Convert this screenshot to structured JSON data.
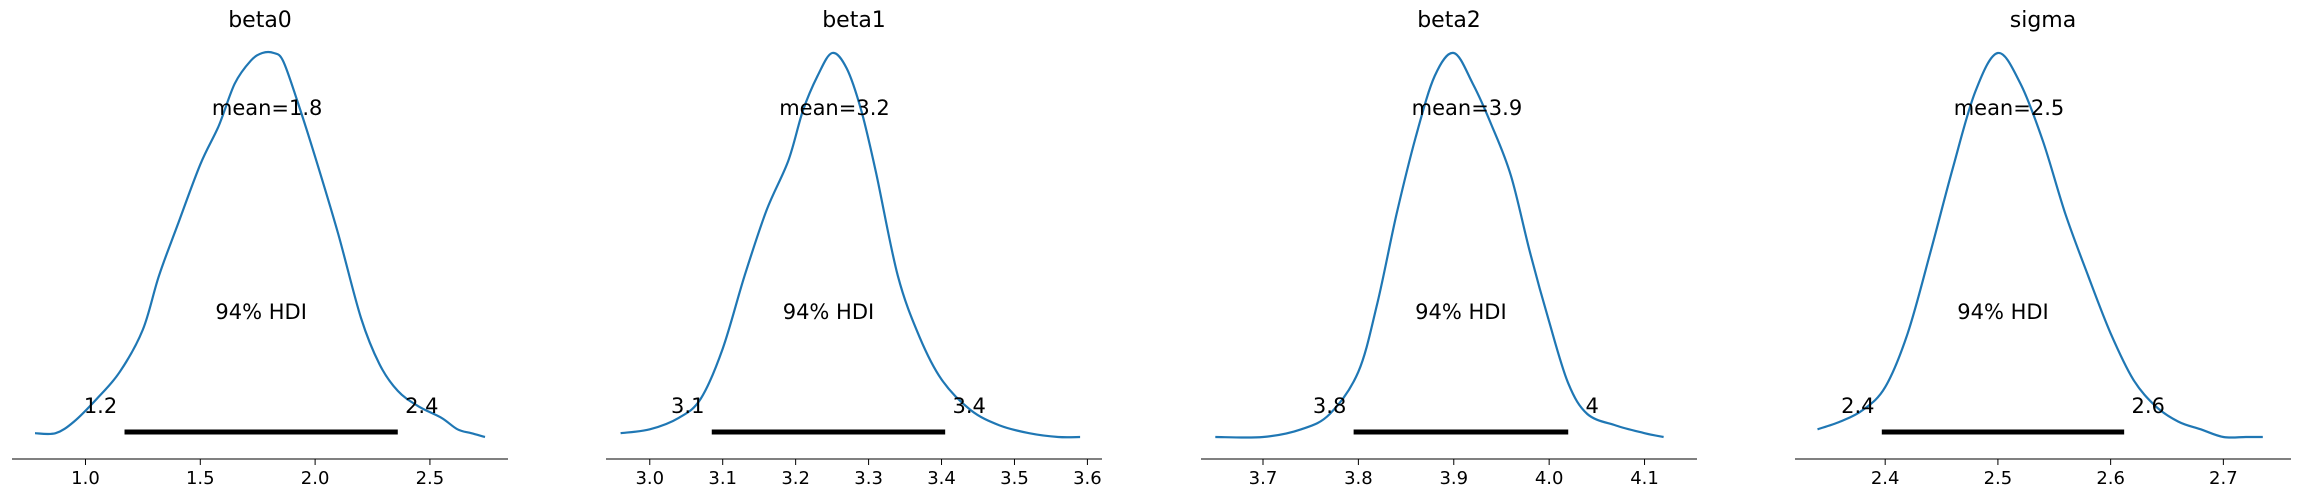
{
  "chart_data": [
    {
      "type": "line",
      "title": "beta0",
      "mean_label": "mean=1.8",
      "hdi_label": "94% HDI",
      "hdi": [
        1.17,
        2.36
      ],
      "hdi_labels": [
        "1.2",
        "2.4"
      ],
      "xlim": [
        0.68,
        2.84
      ],
      "xticks": [
        1.0,
        1.5,
        2.0,
        2.5
      ],
      "xtick_labels": [
        "1.0",
        "1.5",
        "2.0",
        "2.5"
      ],
      "color": "#1f77b4",
      "density": {
        "x": [
          0.78,
          0.87,
          0.95,
          1.05,
          1.15,
          1.25,
          1.32,
          1.4,
          1.5,
          1.58,
          1.65,
          1.72,
          1.77,
          1.82,
          1.86,
          1.92,
          2.0,
          2.1,
          2.2,
          2.28,
          2.36,
          2.45,
          2.55,
          2.62,
          2.68,
          2.74
        ],
        "y": [
          0.01,
          0.01,
          0.04,
          0.1,
          0.17,
          0.28,
          0.42,
          0.55,
          0.71,
          0.81,
          0.92,
          0.98,
          1.0,
          1.0,
          0.98,
          0.88,
          0.73,
          0.53,
          0.31,
          0.19,
          0.12,
          0.08,
          0.05,
          0.02,
          0.01,
          0.0
        ]
      }
    },
    {
      "type": "line",
      "title": "beta1",
      "mean_label": "mean=3.2",
      "hdi_label": "94% HDI",
      "hdi": [
        3.085,
        3.405
      ],
      "hdi_labels": [
        "3.1",
        "3.4"
      ],
      "xlim": [
        2.94,
        3.62
      ],
      "xticks": [
        3.0,
        3.1,
        3.2,
        3.3,
        3.4,
        3.5,
        3.6
      ],
      "xtick_labels": [
        "3.0",
        "3.1",
        "3.2",
        "3.3",
        "3.4",
        "3.5",
        "3.6"
      ],
      "color": "#1f77b4",
      "density": {
        "x": [
          2.96,
          3.0,
          3.04,
          3.07,
          3.1,
          3.13,
          3.16,
          3.19,
          3.21,
          3.23,
          3.25,
          3.27,
          3.29,
          3.31,
          3.34,
          3.37,
          3.4,
          3.44,
          3.48,
          3.52,
          3.56,
          3.59
        ],
        "y": [
          0.01,
          0.02,
          0.05,
          0.1,
          0.23,
          0.42,
          0.59,
          0.72,
          0.85,
          0.94,
          1.0,
          0.96,
          0.85,
          0.69,
          0.42,
          0.26,
          0.15,
          0.07,
          0.03,
          0.01,
          0.0,
          0.0
        ]
      }
    },
    {
      "type": "line",
      "title": "beta2",
      "mean_label": "mean=3.9",
      "hdi_label": "94% HDI",
      "hdi": [
        3.795,
        4.02
      ],
      "hdi_labels": [
        "3.8",
        "4"
      ],
      "xlim": [
        3.635,
        4.155
      ],
      "xticks": [
        3.7,
        3.8,
        3.9,
        4.0,
        4.1
      ],
      "xtick_labels": [
        "3.7",
        "3.8",
        "3.9",
        "4.0",
        "4.1"
      ],
      "color": "#1f77b4",
      "density": {
        "x": [
          3.65,
          3.7,
          3.74,
          3.77,
          3.8,
          3.82,
          3.84,
          3.86,
          3.88,
          3.9,
          3.92,
          3.94,
          3.96,
          3.98,
          4.0,
          4.02,
          4.04,
          4.07,
          4.1,
          4.12
        ],
        "y": [
          0.0,
          0.0,
          0.02,
          0.06,
          0.17,
          0.35,
          0.58,
          0.78,
          0.94,
          1.0,
          0.92,
          0.81,
          0.68,
          0.48,
          0.3,
          0.14,
          0.06,
          0.03,
          0.01,
          0.0
        ]
      }
    },
    {
      "type": "line",
      "title": "sigma",
      "mean_label": "mean=2.5",
      "hdi_label": "94% HDI",
      "hdi": [
        2.397,
        2.612
      ],
      "hdi_labels": [
        "2.4",
        "2.6"
      ],
      "xlim": [
        2.32,
        2.76
      ],
      "xticks": [
        2.4,
        2.5,
        2.6,
        2.7
      ],
      "xtick_labels": [
        "2.4",
        "2.5",
        "2.6",
        "2.7"
      ],
      "color": "#1f77b4",
      "density": {
        "x": [
          2.34,
          2.36,
          2.38,
          2.4,
          2.42,
          2.44,
          2.46,
          2.48,
          2.5,
          2.52,
          2.54,
          2.56,
          2.58,
          2.6,
          2.62,
          2.64,
          2.66,
          2.68,
          2.7,
          2.72,
          2.735
        ],
        "y": [
          0.02,
          0.04,
          0.07,
          0.13,
          0.27,
          0.48,
          0.7,
          0.9,
          1.0,
          0.92,
          0.77,
          0.58,
          0.42,
          0.27,
          0.15,
          0.08,
          0.04,
          0.02,
          0.0,
          0.0,
          0.0
        ]
      }
    }
  ]
}
